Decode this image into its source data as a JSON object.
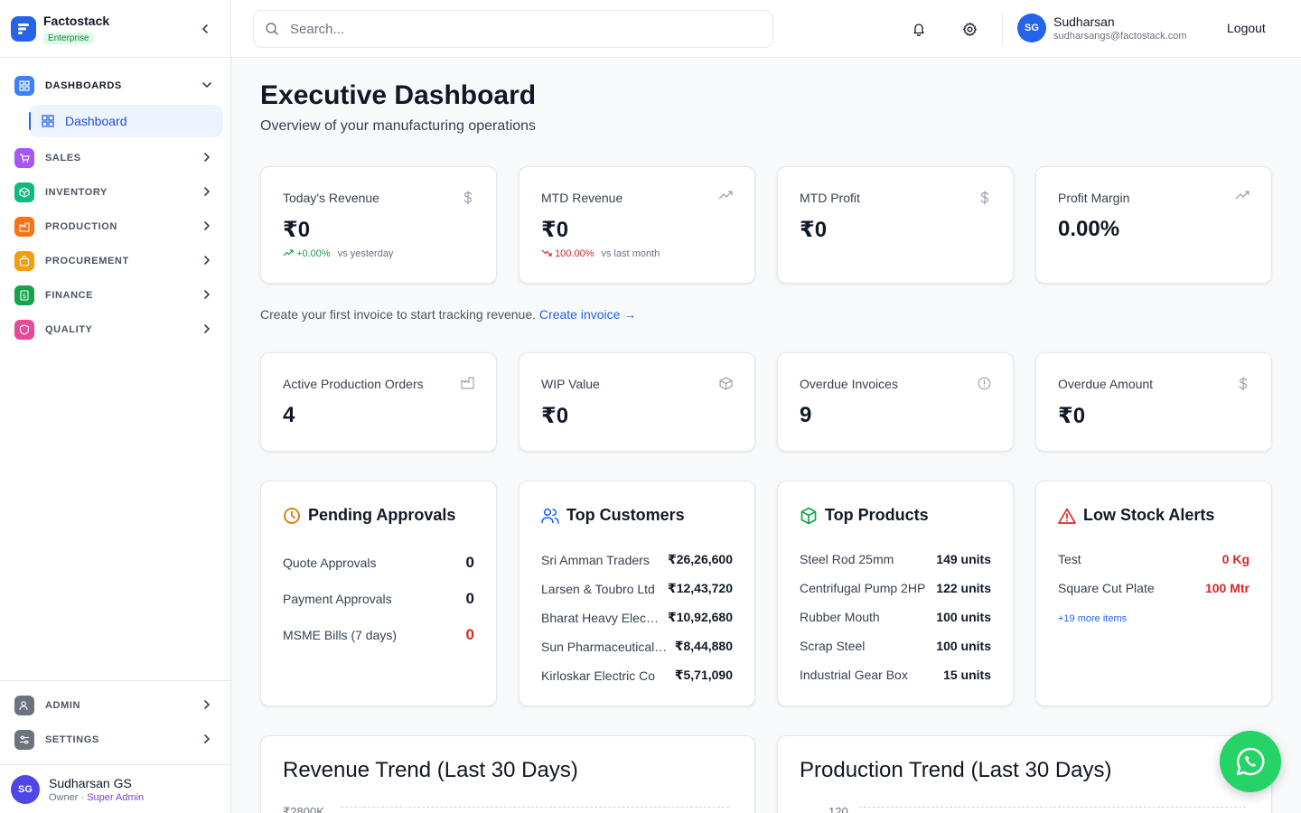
{
  "brand": {
    "name": "Factostack",
    "plan": "Enterprise"
  },
  "sidebar": {
    "groups": [
      {
        "label": "DASHBOARDS",
        "icon": "dashboard-icon",
        "color": "#3b82f6",
        "open": true
      },
      {
        "label": "SALES",
        "icon": "cart-icon",
        "color": "#a855f7"
      },
      {
        "label": "INVENTORY",
        "icon": "box-icon",
        "color": "#10b981"
      },
      {
        "label": "PRODUCTION",
        "icon": "factory-icon",
        "color": "#f97316"
      },
      {
        "label": "PROCUREMENT",
        "icon": "bag-icon",
        "color": "#f59e0b"
      },
      {
        "label": "FINANCE",
        "icon": "dollar-icon",
        "color": "#16a34a"
      },
      {
        "label": "QUALITY",
        "icon": "shield-icon",
        "color": "#ec4899"
      }
    ],
    "active_sub": "Dashboard",
    "bottom": [
      {
        "label": "ADMIN",
        "icon": "admin-icon",
        "color": "#6b7280"
      },
      {
        "label": "SETTINGS",
        "icon": "settings-sliders-icon",
        "color": "#6b7280"
      }
    ],
    "user": {
      "initials": "SG",
      "name": "Sudharsan GS",
      "role": "Owner",
      "sep": " · ",
      "badge": "Super Admin"
    }
  },
  "header": {
    "search_placeholder": "Search...",
    "user": {
      "initials": "SG",
      "name": "Sudharsan",
      "email": "sudharsangs@factostack.com"
    },
    "logout": "Logout"
  },
  "page": {
    "title": "Executive Dashboard",
    "subtitle": "Overview of your manufacturing operations"
  },
  "kpis_row1": [
    {
      "label": "Today's Revenue",
      "value": "₹0",
      "icon": "dollar-icon",
      "change": "+0.00%",
      "change_dir": "up",
      "change_note": "vs yesterday"
    },
    {
      "label": "MTD Revenue",
      "value": "₹0",
      "icon": "trending-up-icon",
      "change": "100.00%",
      "change_dir": "down",
      "change_note": "vs last month"
    },
    {
      "label": "MTD Profit",
      "value": "₹0",
      "icon": "dollar-icon"
    },
    {
      "label": "Profit Margin",
      "value": "0.00%",
      "icon": "trending-up-icon"
    }
  ],
  "hint": {
    "text": "Create your first invoice to start tracking revenue.",
    "link": "Create invoice →"
  },
  "kpis_row2": [
    {
      "label": "Active Production Orders",
      "value": "4",
      "icon": "factory-icon"
    },
    {
      "label": "WIP Value",
      "value": "₹0",
      "icon": "box-icon"
    },
    {
      "label": "Overdue Invoices",
      "value": "9",
      "icon": "alert-circle-icon"
    },
    {
      "label": "Overdue Amount",
      "value": "₹0",
      "icon": "dollar-icon"
    }
  ],
  "panels": {
    "pending": {
      "title": "Pending Approvals",
      "rows": [
        {
          "label": "Quote Approvals",
          "value": "0"
        },
        {
          "label": "Payment Approvals",
          "value": "0"
        },
        {
          "label": "MSME Bills (7 days)",
          "value": "0",
          "red": true
        }
      ]
    },
    "customers": {
      "title": "Top Customers",
      "rows": [
        {
          "label": "Sri Amman Traders",
          "value": "₹26,26,600"
        },
        {
          "label": "Larsen & Toubro Ltd",
          "value": "₹12,43,720"
        },
        {
          "label": "Bharat Heavy Electri...",
          "value": "₹10,92,680"
        },
        {
          "label": "Sun Pharmaceutical ...",
          "value": "₹8,44,880"
        },
        {
          "label": "Kirloskar Electric Co",
          "value": "₹5,71,090"
        }
      ]
    },
    "products": {
      "title": "Top Products",
      "rows": [
        {
          "label": "Steel Rod 25mm",
          "value": "149 units"
        },
        {
          "label": "Centrifugal Pump 2HP",
          "value": "122 units"
        },
        {
          "label": "Rubber Mouth",
          "value": "100 units"
        },
        {
          "label": "Scrap Steel",
          "value": "100 units"
        },
        {
          "label": "Industrial Gear Box",
          "value": "15 units"
        }
      ]
    },
    "lowstock": {
      "title": "Low Stock Alerts",
      "rows": [
        {
          "label": "Test",
          "value": "0 Kg"
        },
        {
          "label": "Square Cut Plate",
          "value": "100 Mtr"
        }
      ],
      "more": "+19 more items"
    }
  },
  "charts": {
    "revenue": {
      "title": "Revenue Trend (Last 30 Days)",
      "top_tick": "₹2800K"
    },
    "production": {
      "title": "Production Trend (Last 30 Days)",
      "top_tick": "120"
    }
  },
  "colors": {
    "accent": "#2563eb",
    "danger": "#dc2626",
    "success": "#16a34a",
    "whatsapp": "#25d366"
  }
}
